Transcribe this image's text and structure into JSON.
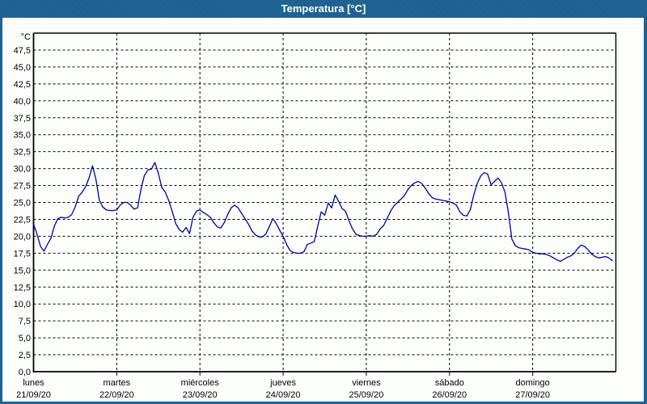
{
  "window": {
    "title": "Temperatura [°C]",
    "colors": {
      "frame": "#1c6396",
      "title_text": "#ffffff",
      "content_bg": "#fcfefc",
      "line": "#0000a8",
      "grid": "#000000",
      "text": "#000000"
    }
  },
  "chart_data": {
    "type": "line",
    "title": "Temperatura [°C]",
    "y_unit": "°C",
    "ylabel": "",
    "xlabel": "",
    "ylim": [
      0,
      50
    ],
    "grid": "dashed",
    "legend": "none",
    "decimal_separator": ",",
    "y_tick_values": [
      47.5,
      45.0,
      42.5,
      40.0,
      37.5,
      35.0,
      32.5,
      30.0,
      27.5,
      25.0,
      22.5,
      20.0,
      17.5,
      15.0,
      12.5,
      10.0,
      7.5,
      5.0,
      2.5,
      0.0
    ],
    "y_tick_labels": [
      "47,5",
      "45,0",
      "42,5",
      "40,0",
      "37,5",
      "35,0",
      "32,5",
      "30,0",
      "27,5",
      "25,0",
      "22,5",
      "20,0",
      "17,5",
      "15,0",
      "12,5",
      "10,0",
      "7,5",
      "5,0",
      "2,5",
      "0,0"
    ],
    "x_days": [
      {
        "name": "lunes",
        "date": "21/09/20"
      },
      {
        "name": "martes",
        "date": "22/09/20"
      },
      {
        "name": "miércoles",
        "date": "23/09/20"
      },
      {
        "name": "jueves",
        "date": "24/09/20"
      },
      {
        "name": "viernes",
        "date": "25/09/20"
      },
      {
        "name": "sábado",
        "date": "26/09/20"
      },
      {
        "name": "domingo",
        "date": "27/09/20"
      }
    ],
    "sampling": "hourly",
    "series": [
      {
        "name": "Temperatura",
        "unit": "°C",
        "color": "#0000a8",
        "values": [
          21.8,
          20.3,
          18.5,
          17.8,
          18.8,
          19.7,
          21.5,
          22.6,
          22.8,
          22.7,
          22.8,
          23.2,
          24.3,
          25.9,
          26.5,
          27.3,
          28.6,
          30.4,
          28.4,
          25.3,
          24.3,
          23.9,
          23.8,
          23.8,
          23.9,
          24.6,
          25.0,
          25.0,
          24.6,
          24.0,
          24.2,
          27.0,
          29.0,
          29.8,
          29.9,
          30.9,
          29.3,
          27.2,
          26.5,
          25.3,
          23.7,
          21.9,
          21.0,
          20.6,
          21.3,
          20.4,
          22.8,
          23.7,
          23.9,
          23.5,
          23.2,
          22.8,
          22.0,
          21.4,
          21.2,
          22.0,
          23.2,
          24.2,
          24.6,
          24.2,
          23.4,
          22.6,
          21.8,
          20.8,
          20.2,
          19.9,
          19.9,
          20.3,
          21.4,
          22.6,
          21.9,
          20.9,
          20.0,
          18.8,
          17.9,
          17.6,
          17.5,
          17.5,
          17.7,
          18.8,
          19.0,
          19.2,
          21.5,
          23.6,
          23.1,
          24.9,
          24.2,
          26.1,
          25.2,
          24.1,
          23.7,
          22.3,
          21.1,
          20.3,
          20.1,
          20.0,
          20.0,
          20.1,
          20.0,
          20.3,
          21.1,
          21.6,
          22.6,
          23.7,
          24.5,
          25.0,
          25.5,
          26.0,
          26.9,
          27.5,
          27.9,
          28.1,
          27.8,
          27.1,
          26.3,
          25.7,
          25.5,
          25.4,
          25.3,
          25.2,
          25.1,
          24.9,
          24.6,
          23.6,
          23.1,
          23.0,
          23.9,
          26.1,
          27.8,
          28.9,
          29.4,
          29.2,
          27.6,
          28.1,
          28.6,
          27.9,
          26.5,
          23.5,
          19.6,
          18.6,
          18.3,
          18.2,
          18.1,
          18.0,
          17.6,
          17.5,
          17.4,
          17.4,
          17.3,
          17.1,
          16.8,
          16.5,
          16.3,
          16.6,
          16.9,
          17.1,
          17.5,
          18.2,
          18.7,
          18.5,
          18.0,
          17.4,
          17.0,
          16.8,
          16.9,
          17.0,
          16.8,
          16.4
        ]
      }
    ]
  }
}
